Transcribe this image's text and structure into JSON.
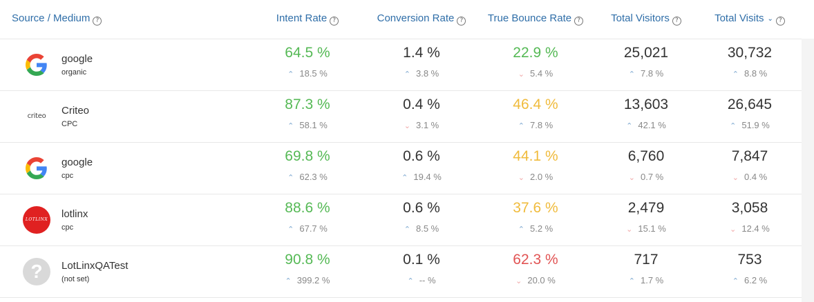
{
  "header": {
    "source": "Source / Medium",
    "intent": "Intent Rate",
    "conversion": "Conversion Rate",
    "bounce": "True Bounce Rate",
    "visitors": "Total Visitors",
    "visits": "Total Visits"
  },
  "icons": {
    "help": "question-circle-icon",
    "sort": "chevron-down-icon",
    "up": "triangle-up-icon",
    "down": "triangle-down-icon"
  },
  "colors": {
    "good": "#55b955",
    "warn": "#f0bb3c",
    "bad": "#e15353",
    "up": "#7aa6cf",
    "down": "#f0a5a5"
  },
  "rows": [
    {
      "logo": "google",
      "name": "google",
      "medium": "organic",
      "intent": "64.5 %",
      "intent_d": "18.5 %",
      "intent_dir": "up",
      "intent_color": "green",
      "conv": "1.4 %",
      "conv_d": "3.8 %",
      "conv_dir": "up",
      "conv_color": "neutral",
      "bounce": "22.9 %",
      "bounce_d": "5.4 %",
      "bounce_dir": "down",
      "bounce_color": "green",
      "visitors": "25,021",
      "visitors_d": "7.8 %",
      "visitors_dir": "up",
      "visits": "30,732",
      "visits_d": "8.8 %",
      "visits_dir": "up"
    },
    {
      "logo": "criteo",
      "logo_text": "criteo",
      "name": "Criteo",
      "medium": "CPC",
      "intent": "87.3 %",
      "intent_d": "58.1 %",
      "intent_dir": "up",
      "intent_color": "green",
      "conv": "0.4 %",
      "conv_d": "3.1 %",
      "conv_dir": "down",
      "conv_color": "neutral",
      "bounce": "46.4 %",
      "bounce_d": "7.8 %",
      "bounce_dir": "up",
      "bounce_color": "yellow",
      "visitors": "13,603",
      "visitors_d": "42.1 %",
      "visitors_dir": "up",
      "visits": "26,645",
      "visits_d": "51.9 %",
      "visits_dir": "up"
    },
    {
      "logo": "google",
      "name": "google",
      "medium": "cpc",
      "intent": "69.8 %",
      "intent_d": "62.3 %",
      "intent_dir": "up",
      "intent_color": "green",
      "conv": "0.6 %",
      "conv_d": "19.4 %",
      "conv_dir": "up",
      "conv_color": "neutral",
      "bounce": "44.1 %",
      "bounce_d": "2.0 %",
      "bounce_dir": "down",
      "bounce_color": "yellow",
      "visitors": "6,760",
      "visitors_d": "0.7 %",
      "visitors_dir": "down",
      "visits": "7,847",
      "visits_d": "0.4 %",
      "visits_dir": "down"
    },
    {
      "logo": "lotlinx",
      "logo_text": "LOTLINX",
      "name": "lotlinx",
      "medium": "cpc",
      "intent": "88.6 %",
      "intent_d": "67.7 %",
      "intent_dir": "up",
      "intent_color": "green",
      "conv": "0.6 %",
      "conv_d": "8.5 %",
      "conv_dir": "up",
      "conv_color": "neutral",
      "bounce": "37.6 %",
      "bounce_d": "5.2 %",
      "bounce_dir": "up",
      "bounce_color": "yellow",
      "visitors": "2,479",
      "visitors_d": "15.1 %",
      "visitors_dir": "down",
      "visits": "3,058",
      "visits_d": "12.4 %",
      "visits_dir": "down"
    },
    {
      "logo": "unknown",
      "logo_text": "?",
      "name": "LotLinxQATest",
      "medium": "(not set)",
      "intent": "90.8 %",
      "intent_d": "399.2 %",
      "intent_dir": "up",
      "intent_color": "green",
      "conv": "0.1 %",
      "conv_d": "-- %",
      "conv_dir": "up",
      "conv_color": "neutral",
      "bounce": "62.3 %",
      "bounce_d": "20.0 %",
      "bounce_dir": "down",
      "bounce_color": "red",
      "visitors": "717",
      "visitors_d": "1.7 %",
      "visitors_dir": "up",
      "visits": "753",
      "visits_d": "6.2 %",
      "visits_dir": "up"
    }
  ]
}
